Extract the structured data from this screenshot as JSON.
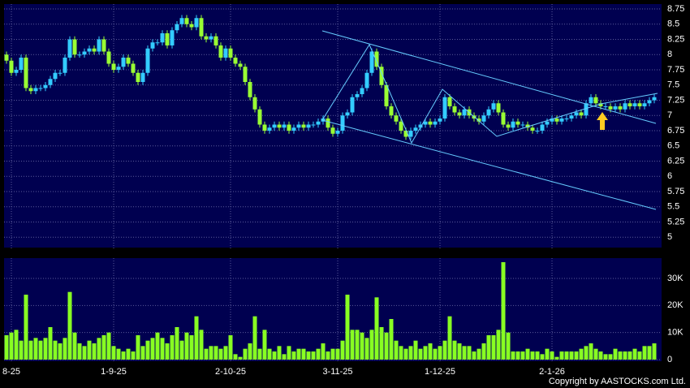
{
  "chart_data": [
    {
      "type": "candlestick",
      "categories": [
        null,
        "8-25",
        null,
        null,
        null,
        null,
        null,
        null,
        null,
        null,
        null,
        null,
        null,
        null,
        null,
        null,
        null,
        null,
        null,
        null,
        null,
        null,
        "1-9-25",
        null,
        null,
        null,
        null,
        null,
        null,
        null,
        null,
        null,
        null,
        null,
        null,
        null,
        null,
        null,
        null,
        null,
        null,
        null,
        null,
        null,
        null,
        null,
        "2-10-25",
        null,
        null,
        null,
        null,
        null,
        null,
        null,
        null,
        null,
        null,
        null,
        null,
        null,
        null,
        null,
        null,
        null,
        null,
        null,
        null,
        null,
        "3-11-25",
        null,
        null,
        null,
        null,
        null,
        null,
        null,
        null,
        null,
        null,
        null,
        null,
        null,
        null,
        null,
        null,
        null,
        null,
        null,
        null,
        "1-12-25",
        null,
        null,
        null,
        null,
        null,
        null,
        null,
        null,
        null,
        null,
        null,
        null,
        null,
        null,
        null,
        null,
        null,
        null,
        null,
        null,
        null,
        null,
        "2-1-26",
        null,
        null,
        null,
        null,
        null,
        null,
        null,
        null,
        null,
        null,
        null,
        null,
        null,
        null,
        null,
        null,
        null,
        null,
        null,
        null,
        null
      ],
      "open": [
        8.0,
        7.9,
        7.7,
        7.75,
        7.95,
        7.45,
        7.4,
        7.45,
        7.45,
        7.5,
        7.6,
        7.7,
        7.7,
        7.95,
        8.25,
        8.0,
        8.0,
        8.05,
        8.1,
        8.05,
        8.25,
        8.05,
        7.85,
        7.75,
        7.8,
        7.95,
        7.85,
        7.7,
        7.55,
        7.7,
        8.1,
        8.2,
        8.2,
        8.35,
        8.15,
        8.4,
        8.5,
        8.6,
        8.5,
        8.45,
        8.6,
        8.3,
        8.25,
        8.3,
        8.15,
        7.95,
        8.1,
        7.95,
        7.85,
        7.8,
        7.55,
        7.3,
        7.1,
        6.85,
        6.75,
        6.8,
        6.85,
        6.8,
        6.85,
        6.75,
        6.8,
        6.85,
        6.8,
        6.85,
        6.85,
        6.9,
        6.95,
        6.8,
        6.7,
        6.75,
        7.0,
        7.05,
        7.3,
        7.35,
        7.45,
        7.7,
        8.05,
        7.8,
        7.5,
        7.15,
        7.0,
        6.9,
        6.75,
        6.65,
        6.75,
        6.8,
        6.85,
        6.9,
        6.85,
        6.9,
        6.95,
        7.3,
        7.15,
        7.05,
        7.0,
        7.1,
        7.0,
        6.95,
        6.9,
        7.0,
        7.1,
        7.2,
        7.05,
        6.85,
        6.8,
        6.9,
        6.85,
        6.85,
        6.8,
        6.75,
        6.75,
        6.85,
        6.9,
        6.95,
        6.9,
        6.95,
        6.95,
        7.0,
        7.05,
        7.0,
        7.2,
        7.3,
        7.2,
        7.15,
        7.15,
        7.1,
        7.15,
        7.1,
        7.2,
        7.15,
        7.2,
        7.15,
        7.2,
        7.25
      ],
      "high": [
        8.05,
        7.95,
        7.8,
        8.0,
        8.0,
        7.5,
        7.5,
        7.5,
        7.55,
        7.65,
        7.75,
        7.75,
        8.0,
        8.3,
        8.3,
        8.05,
        8.1,
        8.15,
        8.15,
        8.3,
        8.3,
        8.1,
        7.9,
        7.85,
        8.0,
        8.0,
        7.9,
        7.75,
        7.75,
        8.15,
        8.25,
        8.25,
        8.4,
        8.4,
        8.45,
        8.55,
        8.65,
        8.65,
        8.55,
        8.65,
        8.65,
        8.35,
        8.35,
        8.35,
        8.2,
        8.15,
        8.15,
        8.0,
        7.9,
        7.85,
        7.6,
        7.35,
        7.15,
        6.9,
        6.85,
        6.9,
        6.9,
        6.9,
        6.9,
        6.85,
        6.9,
        6.9,
        6.9,
        6.9,
        6.95,
        7.0,
        7.0,
        6.85,
        6.8,
        7.05,
        7.1,
        7.35,
        7.4,
        7.5,
        7.75,
        8.1,
        8.1,
        7.85,
        7.55,
        7.2,
        7.05,
        6.95,
        6.8,
        6.8,
        6.85,
        6.9,
        6.95,
        6.95,
        6.95,
        7.0,
        7.35,
        7.35,
        7.2,
        7.1,
        7.15,
        7.15,
        7.05,
        7.0,
        7.05,
        7.15,
        7.25,
        7.25,
        7.1,
        6.9,
        6.95,
        6.95,
        6.9,
        6.9,
        6.85,
        6.8,
        6.9,
        6.95,
        7.0,
        7.0,
        7.0,
        7.0,
        7.05,
        7.1,
        7.1,
        7.25,
        7.35,
        7.35,
        7.25,
        7.2,
        7.2,
        7.2,
        7.2,
        7.25,
        7.25,
        7.25,
        7.25,
        7.25,
        7.3,
        7.35
      ],
      "low": [
        7.85,
        7.65,
        7.65,
        7.7,
        7.4,
        7.35,
        7.35,
        7.4,
        7.4,
        7.45,
        7.55,
        7.65,
        7.65,
        7.9,
        7.95,
        7.95,
        7.95,
        8.0,
        8.0,
        8.0,
        8.0,
        7.8,
        7.7,
        7.7,
        7.75,
        7.8,
        7.65,
        7.5,
        7.5,
        7.65,
        8.05,
        8.15,
        8.15,
        8.1,
        8.1,
        8.35,
        8.45,
        8.45,
        8.4,
        8.4,
        8.25,
        8.2,
        8.2,
        8.1,
        7.9,
        7.9,
        7.9,
        7.8,
        7.75,
        7.5,
        7.25,
        7.05,
        6.8,
        6.7,
        6.7,
        6.75,
        6.75,
        6.75,
        6.7,
        6.7,
        6.75,
        6.75,
        6.75,
        6.8,
        6.8,
        6.85,
        6.75,
        6.65,
        6.65,
        6.7,
        6.95,
        7.0,
        7.25,
        7.3,
        7.4,
        7.65,
        7.75,
        7.45,
        7.1,
        6.95,
        6.85,
        6.7,
        6.6,
        6.6,
        6.7,
        6.75,
        6.8,
        6.8,
        6.8,
        6.85,
        6.9,
        7.1,
        7.0,
        6.95,
        6.95,
        6.95,
        6.9,
        6.85,
        6.85,
        6.95,
        7.05,
        7.0,
        6.8,
        6.75,
        6.75,
        6.8,
        6.8,
        6.75,
        6.7,
        6.7,
        6.7,
        6.8,
        6.85,
        6.85,
        6.85,
        6.9,
        6.9,
        6.95,
        6.95,
        6.95,
        7.15,
        7.15,
        7.1,
        7.1,
        7.05,
        7.05,
        7.05,
        7.05,
        7.1,
        7.1,
        7.1,
        7.1,
        7.15,
        7.2
      ],
      "close": [
        7.9,
        7.7,
        7.75,
        7.95,
        7.45,
        7.4,
        7.45,
        7.45,
        7.5,
        7.6,
        7.7,
        7.7,
        7.95,
        8.25,
        8.0,
        8.0,
        8.05,
        8.1,
        8.05,
        8.25,
        8.05,
        7.85,
        7.75,
        7.8,
        7.95,
        7.85,
        7.7,
        7.55,
        7.7,
        8.1,
        8.2,
        8.2,
        8.35,
        8.15,
        8.4,
        8.5,
        8.6,
        8.5,
        8.45,
        8.6,
        8.3,
        8.25,
        8.3,
        8.15,
        7.95,
        8.1,
        7.95,
        7.85,
        7.8,
        7.55,
        7.3,
        7.1,
        6.85,
        6.75,
        6.8,
        6.85,
        6.8,
        6.85,
        6.75,
        6.8,
        6.85,
        6.8,
        6.85,
        6.85,
        6.9,
        6.95,
        6.8,
        6.7,
        6.75,
        7.0,
        7.05,
        7.3,
        7.35,
        7.45,
        7.7,
        8.05,
        7.8,
        7.5,
        7.15,
        7.0,
        6.9,
        6.75,
        6.65,
        6.75,
        6.8,
        6.85,
        6.9,
        6.85,
        6.9,
        6.95,
        7.3,
        7.15,
        7.05,
        7.0,
        7.1,
        7.0,
        6.95,
        6.9,
        7.0,
        7.1,
        7.2,
        7.05,
        6.85,
        6.8,
        6.9,
        6.85,
        6.85,
        6.8,
        6.75,
        6.75,
        6.85,
        6.9,
        6.95,
        6.9,
        6.95,
        6.95,
        7.0,
        7.05,
        7.0,
        7.2,
        7.3,
        7.2,
        7.15,
        7.15,
        7.1,
        7.15,
        7.1,
        7.2,
        7.15,
        7.2,
        7.15,
        7.2,
        7.25,
        7.3
      ],
      "up_color": "#33ccff",
      "down_color": "#99ff33",
      "ylim": [
        4.83,
        8.83
      ],
      "yticks": [
        5,
        5.25,
        5.5,
        5.75,
        6,
        6.25,
        6.5,
        6.75,
        7,
        7.25,
        7.5,
        7.75,
        8,
        8.25,
        8.5,
        8.75
      ],
      "grid": true
    },
    {
      "type": "bar",
      "values": [
        9000,
        10000,
        11000,
        7000,
        24000,
        7000,
        8000,
        7000,
        8000,
        12000,
        7000,
        6000,
        8000,
        25000,
        10000,
        6000,
        5000,
        7000,
        6000,
        8000,
        9000,
        10000,
        5000,
        4000,
        3000,
        4000,
        3000,
        9000,
        5000,
        7000,
        8000,
        10000,
        8000,
        6000,
        9000,
        12000,
        7000,
        10000,
        9000,
        16000,
        11000,
        4000,
        5000,
        5000,
        4000,
        5000,
        9000,
        2000,
        1000,
        4000,
        6000,
        16000,
        4000,
        11000,
        4000,
        3000,
        5000,
        2000,
        5000,
        3000,
        4000,
        4000,
        3000,
        3000,
        4000,
        6000,
        3000,
        4000,
        4000,
        7000,
        24000,
        11000,
        11000,
        10000,
        8000,
        11000,
        23000,
        12000,
        10000,
        15000,
        7000,
        5000,
        4000,
        5000,
        7000,
        4000,
        5000,
        6000,
        4000,
        5000,
        7000,
        16000,
        7000,
        6000,
        5000,
        5000,
        3000,
        4000,
        6000,
        9000,
        9000,
        11000,
        36000,
        10000,
        3000,
        3000,
        3000,
        4000,
        3000,
        3000,
        2000,
        4000,
        3000,
        1000,
        3000,
        3000,
        3000,
        3000,
        4000,
        5000,
        6000,
        4000,
        3000,
        2000,
        2000,
        4000,
        3000,
        3000,
        3000,
        4000,
        3000,
        5000,
        5000,
        6000
      ],
      "color": "#88ff22",
      "ylim": [
        0,
        37500
      ],
      "yticks": [
        0,
        {
          "value": 10000,
          "label": "10K"
        },
        {
          "value": 20000,
          "label": "20K"
        },
        {
          "value": 30000,
          "label": "30K"
        }
      ],
      "grid": true
    }
  ],
  "copyright": "Copyright by AASTOCKS.com Ltd."
}
